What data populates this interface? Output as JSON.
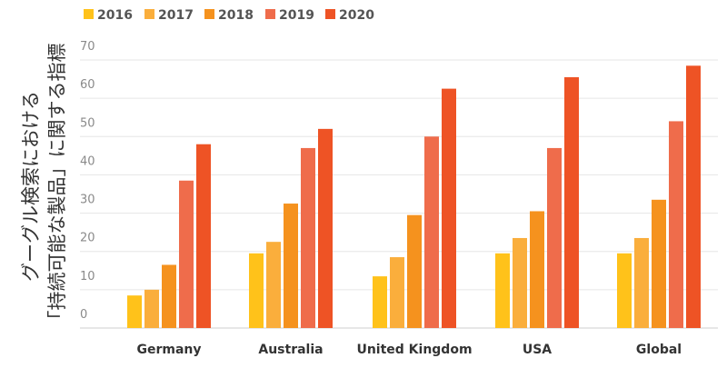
{
  "chart_data": {
    "type": "bar",
    "title": "",
    "xlabel": "",
    "ylabel": [
      "グーグル検索における",
      "「持続可能な製品」に関する指標"
    ],
    "categories": [
      "Germany",
      "Australia",
      "United Kingdom",
      "USA",
      "Global"
    ],
    "series": [
      {
        "name": "2016",
        "color": "#FFC21A",
        "values": [
          8.5,
          19.5,
          13.5,
          19.5,
          19.5
        ]
      },
      {
        "name": "2017",
        "color": "#FAAE3C",
        "values": [
          10,
          22.5,
          18.5,
          23.5,
          23.5
        ]
      },
      {
        "name": "2018",
        "color": "#F5921E",
        "values": [
          16.5,
          32.5,
          29.5,
          30.5,
          33.5
        ]
      },
      {
        "name": "2019",
        "color": "#EF6C4B",
        "values": [
          38.5,
          47,
          50,
          47,
          54
        ]
      },
      {
        "name": "2020",
        "color": "#EE5325",
        "values": [
          48,
          52,
          62.5,
          65.5,
          68.5
        ]
      }
    ],
    "yticks": [
      0,
      10,
      20,
      30,
      40,
      50,
      60,
      70
    ],
    "ylim": [
      0,
      70
    ],
    "grid": true,
    "legend_position": "top-left"
  }
}
